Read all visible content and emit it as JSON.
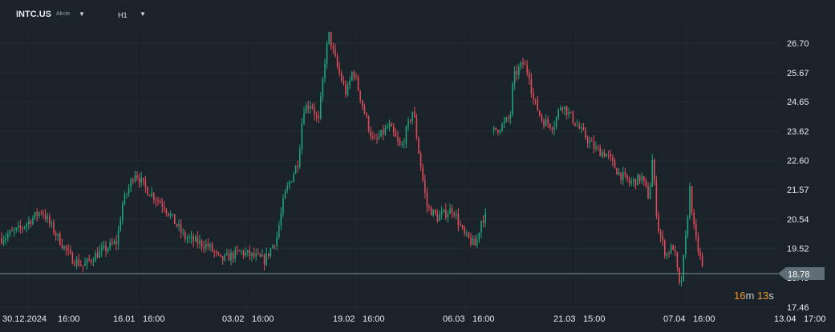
{
  "header": {
    "symbol": "INTC.US",
    "asset_type": "Akcie",
    "timeframe": "H1"
  },
  "countdown": {
    "minutes": "16",
    "min_unit": "m",
    "seconds": "13",
    "sec_unit": "s"
  },
  "colors": {
    "up": "#1fa37a",
    "down": "#e14b5a",
    "background": "#1a2329",
    "axis_text": "#e8ecef",
    "price_line": "#8795a0",
    "countdown_number": "#f0962e"
  },
  "chart_data": {
    "type": "candlestick",
    "title": "",
    "y_ticks": [
      "26.70",
      "25.67",
      "24.65",
      "23.62",
      "22.60",
      "21.57",
      "20.54",
      "19.52",
      "18.49",
      "17.46"
    ],
    "x_ticks": [
      "30.12.2024",
      "16:00",
      "16.01",
      "16:00",
      "03.02",
      "16:00",
      "19.02",
      "16:00",
      "06.03",
      "16:00",
      "21.03",
      "15:00",
      "07.04",
      "16:00",
      "13.04",
      "17:00"
    ],
    "ylim": [
      17.46,
      27.6
    ],
    "current_price": "18.78",
    "grid": true,
    "price_path": [
      [
        0,
        19.85
      ],
      [
        25,
        20.2
      ],
      [
        52,
        20.85
      ],
      [
        70,
        20.0
      ],
      [
        88,
        19.2
      ],
      [
        104,
        18.9
      ],
      [
        120,
        19.3
      ],
      [
        146,
        19.75
      ],
      [
        152,
        21.0
      ],
      [
        168,
        22.2
      ],
      [
        182,
        21.6
      ],
      [
        205,
        21.0
      ],
      [
        230,
        19.9
      ],
      [
        260,
        19.6
      ],
      [
        275,
        19.1
      ],
      [
        300,
        19.4
      ],
      [
        330,
        19.1
      ],
      [
        345,
        19.9
      ],
      [
        355,
        21.4
      ],
      [
        372,
        22.6
      ],
      [
        378,
        24.4
      ],
      [
        388,
        24.6
      ],
      [
        397,
        23.9
      ],
      [
        405,
        26.1
      ],
      [
        410,
        27.0
      ],
      [
        420,
        25.9
      ],
      [
        432,
        24.9
      ],
      [
        440,
        25.8
      ],
      [
        455,
        24.2
      ],
      [
        466,
        23.2
      ],
      [
        485,
        23.8
      ],
      [
        500,
        23.0
      ],
      [
        515,
        24.4
      ],
      [
        522,
        22.9
      ],
      [
        532,
        21.0
      ],
      [
        545,
        20.6
      ],
      [
        565,
        20.9
      ],
      [
        578,
        20.0
      ],
      [
        593,
        19.6
      ],
      [
        600,
        20.5
      ],
      [
        610,
        20.8
      ],
      [
        614,
        23.6
      ],
      [
        625,
        23.8
      ],
      [
        636,
        24.1
      ],
      [
        640,
        25.5
      ],
      [
        652,
        26.0
      ],
      [
        660,
        25.6
      ],
      [
        664,
        24.8
      ],
      [
        676,
        24.0
      ],
      [
        690,
        23.8
      ],
      [
        700,
        24.6
      ],
      [
        710,
        24.2
      ],
      [
        725,
        23.6
      ],
      [
        742,
        23.0
      ],
      [
        757,
        22.8
      ],
      [
        770,
        22.2
      ],
      [
        785,
        21.8
      ],
      [
        800,
        22.0
      ],
      [
        810,
        21.2
      ],
      [
        812,
        23.0
      ],
      [
        820,
        20.3
      ],
      [
        830,
        19.3
      ],
      [
        840,
        19.6
      ],
      [
        848,
        18.0
      ],
      [
        855,
        19.9
      ],
      [
        860,
        21.6
      ],
      [
        866,
        20.0
      ],
      [
        872,
        19.3
      ],
      [
        878,
        18.5
      ]
    ],
    "candle_gaps": [
      [
        607,
        614
      ]
    ]
  }
}
